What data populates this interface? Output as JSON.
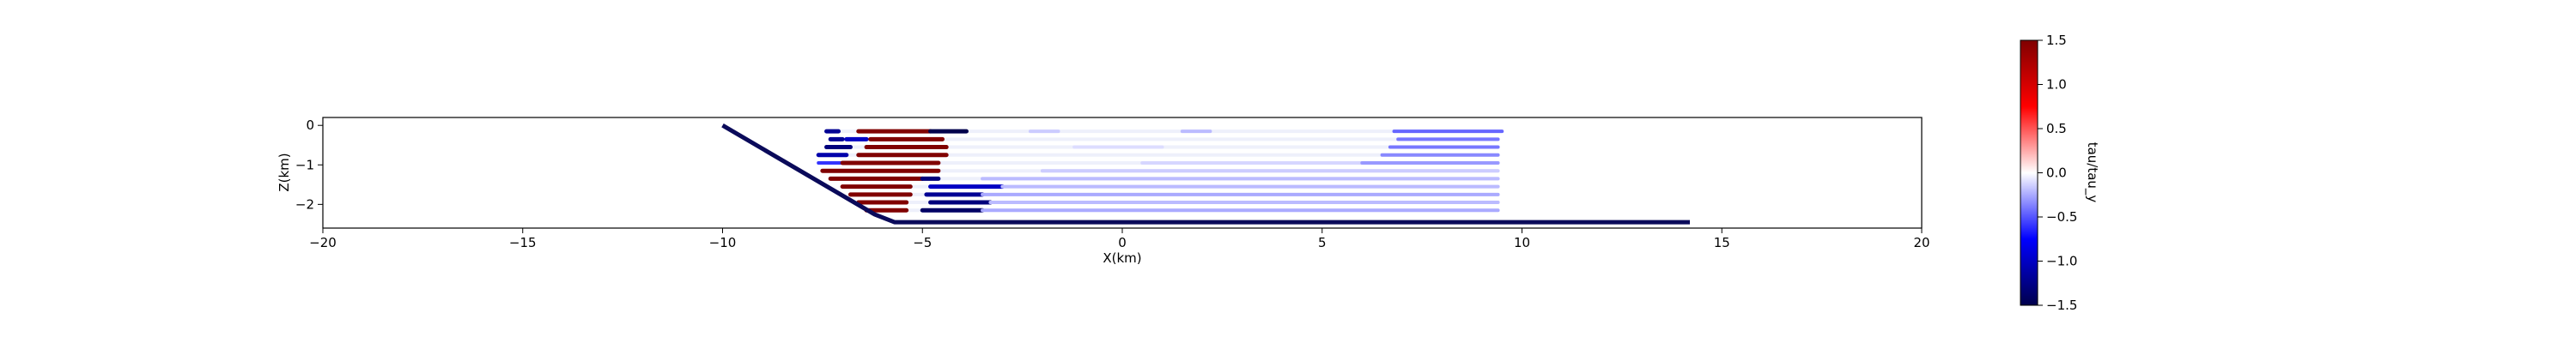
{
  "chart_data": {
    "type": "scatter",
    "xlabel": "X(km)",
    "ylabel": "Z(km)",
    "xlim": [
      -20,
      20
    ],
    "ylim": [
      -2.6,
      0.2
    ],
    "x_ticks": [
      -20,
      -15,
      -10,
      -5,
      0,
      5,
      10,
      15,
      20
    ],
    "x_tick_labels": [
      "−20",
      "−15",
      "−10",
      "−5",
      "0",
      "5",
      "10",
      "15",
      "20"
    ],
    "y_ticks": [
      0,
      -1,
      -2
    ],
    "y_tick_labels": [
      "0",
      "−1",
      "−2"
    ],
    "grid": false,
    "colormap": "seismic",
    "colorbar": {
      "label": "tau/tau_y",
      "range": [
        -1.5,
        1.5
      ],
      "ticks": [
        1.5,
        1.0,
        0.5,
        0.0,
        -0.5,
        -1.0,
        -1.5
      ],
      "tick_labels": [
        "1.5",
        "1.0",
        "0.5",
        "0.0",
        "−0.5",
        "−1.0",
        "−1.5"
      ]
    },
    "fault": {
      "color": "#0a0a5a",
      "points": [
        [
          -10.0,
          0.0
        ],
        [
          -6.2,
          -2.25
        ],
        [
          -5.7,
          -2.45
        ],
        [
          14.2,
          -2.45
        ]
      ]
    },
    "layers": [
      {
        "z": -0.15,
        "x_start": -7.4,
        "x_end": 9.5,
        "segments": [
          {
            "x0": -7.4,
            "x1": -7.1,
            "value": -1.2
          },
          {
            "x0": -6.6,
            "x1": -4.8,
            "value": 1.5
          },
          {
            "x0": -4.8,
            "x1": -3.9,
            "value": -1.5
          },
          {
            "x0": -2.3,
            "x1": -1.6,
            "value": -0.15
          },
          {
            "x0": 1.5,
            "x1": 2.2,
            "value": -0.2
          },
          {
            "x0": 6.8,
            "x1": 9.5,
            "value": -0.45
          }
        ]
      },
      {
        "z": -0.35,
        "x_start": -7.3,
        "x_end": 9.4,
        "segments": [
          {
            "x0": -7.3,
            "x1": -7.0,
            "value": -1.2
          },
          {
            "x0": -6.9,
            "x1": -6.4,
            "value": -1.0
          },
          {
            "x0": -6.3,
            "x1": -4.5,
            "value": 1.5
          },
          {
            "x0": 6.9,
            "x1": 9.4,
            "value": -0.4
          }
        ]
      },
      {
        "z": -0.55,
        "x_start": -7.4,
        "x_end": 9.4,
        "segments": [
          {
            "x0": -7.4,
            "x1": -6.8,
            "value": -1.3
          },
          {
            "x0": -6.4,
            "x1": -4.4,
            "value": 1.5
          },
          {
            "x0": -1.2,
            "x1": 1.0,
            "value": -0.1
          },
          {
            "x0": 6.7,
            "x1": 9.4,
            "value": -0.4
          }
        ]
      },
      {
        "z": -0.75,
        "x_start": -7.6,
        "x_end": 9.4,
        "segments": [
          {
            "x0": -7.6,
            "x1": -6.9,
            "value": -1.1
          },
          {
            "x0": -6.6,
            "x1": -4.4,
            "value": 1.5
          },
          {
            "x0": 6.5,
            "x1": 9.4,
            "value": -0.35
          }
        ]
      },
      {
        "z": -0.95,
        "x_start": -7.6,
        "x_end": 9.4,
        "segments": [
          {
            "x0": -7.6,
            "x1": -7.0,
            "value": -0.6
          },
          {
            "x0": -7.0,
            "x1": -4.6,
            "value": 1.5
          },
          {
            "x0": 0.5,
            "x1": 6.0,
            "value": -0.12
          },
          {
            "x0": 6.0,
            "x1": 9.4,
            "value": -0.3
          }
        ]
      },
      {
        "z": -1.15,
        "x_start": -7.5,
        "x_end": 9.4,
        "segments": [
          {
            "x0": -7.5,
            "x1": -4.6,
            "value": 1.5
          },
          {
            "x0": -2.0,
            "x1": 9.4,
            "value": -0.15
          }
        ]
      },
      {
        "z": -1.35,
        "x_start": -7.3,
        "x_end": 9.4,
        "segments": [
          {
            "x0": -7.3,
            "x1": -5.0,
            "value": 1.5
          },
          {
            "x0": -5.0,
            "x1": -4.6,
            "value": -1.3
          },
          {
            "x0": -3.5,
            "x1": 9.4,
            "value": -0.2
          }
        ]
      },
      {
        "z": -1.55,
        "x_start": -7.0,
        "x_end": 9.4,
        "segments": [
          {
            "x0": -7.0,
            "x1": -5.3,
            "value": 1.5
          },
          {
            "x0": -4.8,
            "x1": -3.0,
            "value": -1.0
          },
          {
            "x0": -3.0,
            "x1": 9.4,
            "value": -0.2
          }
        ]
      },
      {
        "z": -1.75,
        "x_start": -6.8,
        "x_end": 9.4,
        "segments": [
          {
            "x0": -6.8,
            "x1": -5.3,
            "value": 1.5
          },
          {
            "x0": -4.9,
            "x1": -3.5,
            "value": -1.2
          },
          {
            "x0": -3.5,
            "x1": 9.4,
            "value": -0.25
          }
        ]
      },
      {
        "z": -1.95,
        "x_start": -6.6,
        "x_end": 9.4,
        "segments": [
          {
            "x0": -6.6,
            "x1": -5.4,
            "value": 1.5
          },
          {
            "x0": -4.8,
            "x1": -3.3,
            "value": -1.3
          },
          {
            "x0": -3.3,
            "x1": 9.4,
            "value": -0.2
          }
        ]
      },
      {
        "z": -2.15,
        "x_start": -6.4,
        "x_end": 9.4,
        "segments": [
          {
            "x0": -6.4,
            "x1": -5.4,
            "value": 1.5
          },
          {
            "x0": -5.0,
            "x1": -3.5,
            "value": -1.4
          },
          {
            "x0": -3.5,
            "x1": 9.4,
            "value": -0.25
          }
        ]
      }
    ]
  }
}
